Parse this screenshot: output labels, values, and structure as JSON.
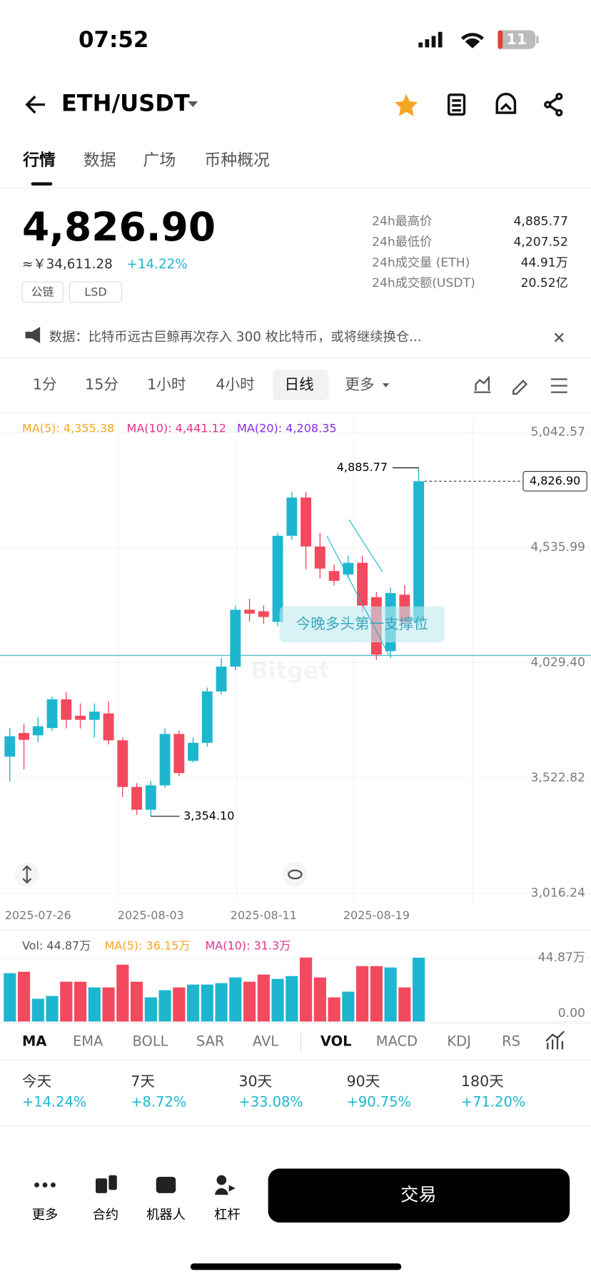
{
  "status_bar": {
    "time": "07:52",
    "battery": "11"
  },
  "header": {
    "pair": "ETH/USDT"
  },
  "tabs": [
    "行情",
    "数据",
    "广场",
    "币种概况"
  ],
  "price": {
    "last": "4,826.90",
    "cny": "≈￥34,611.28",
    "change": "+14.22%",
    "tags": [
      "公链",
      "LSD"
    ]
  },
  "stats": [
    [
      "24h最高价",
      "4,885.77"
    ],
    [
      "24h最低价",
      "4,207.52"
    ],
    [
      "24h成交量 (ETH)",
      "44.91万"
    ],
    [
      "24h成交额(USDT)",
      "20.52亿"
    ]
  ],
  "news": "数据：比特币远古巨鲸再次存入 300 枚比特币，或将继续换仓...",
  "intervals": [
    "1分",
    "15分",
    "1小时",
    "4小时",
    "日线",
    "更多"
  ],
  "kline": {
    "ma_legend": [
      {
        "text": "MA(5): 4,355.38",
        "color": "#f5a623"
      },
      {
        "text": "MA(10): 4,441.12",
        "color": "#e0338c"
      },
      {
        "text": "MA(20): 4,208.35",
        "color": "#8a2be2"
      }
    ],
    "up_color": "#1eb6cf",
    "down_color": "#f2495e",
    "categories": [
      null,
      null,
      "2025-07-26",
      null,
      null,
      null,
      null,
      null,
      null,
      null,
      "2025-08-03",
      null,
      null,
      null,
      null,
      null,
      null,
      null,
      "2025-08-11",
      null,
      null,
      null,
      null,
      null,
      null,
      null,
      "2025-08-19",
      null,
      null,
      null
    ],
    "open": [
      3616,
      3720,
      3710,
      3742,
      3868,
      3796,
      3778,
      3806,
      3688,
      3483,
      3383,
      3490,
      3716,
      3598,
      3677,
      3903,
      4012,
      4262,
      4255,
      4209,
      4587,
      4755,
      4540,
      4432,
      4417,
      4468,
      4317,
      4080,
      4328,
      4209
    ],
    "high": [
      3742,
      3760,
      3790,
      3880,
      3900,
      3850,
      3850,
      3860,
      3700,
      3500,
      3510,
      3740,
      3730,
      3700,
      3920,
      4050,
      4280,
      4310,
      4280,
      4600,
      4780,
      4780,
      4600,
      4460,
      4500,
      4500,
      4340,
      4360,
      4370,
      4885.77
    ],
    "low": [
      3508,
      3560,
      3680,
      3730,
      3740,
      3740,
      3700,
      3670,
      3440,
      3360,
      3354.1,
      3480,
      3530,
      3590,
      3660,
      3890,
      3995,
      4210,
      4200,
      4190,
      4570,
      4440,
      4400,
      4370,
      4400,
      4250,
      4040,
      4050,
      4180,
      4190
    ],
    "close": [
      3706,
      3690,
      3750,
      3868,
      3778,
      3778,
      3814,
      3688,
      3483,
      3383,
      3490,
      3716,
      3544,
      3677,
      3903,
      4012,
      4262,
      4245,
      4230,
      4587,
      4755,
      4540,
      4443,
      4389,
      4468,
      4280,
      4065,
      4335,
      4209,
      4826.9
    ],
    "ylim": [
      2980,
      5110
    ],
    "yticks": [
      {
        "value": 5042.57,
        "label": "5,042.57"
      },
      {
        "value": 4535.99,
        "label": "4,535.99"
      },
      {
        "value": 4029.4,
        "label": "4,029.40"
      },
      {
        "value": 3522.82,
        "label": "3,522.82"
      },
      {
        "value": 3016.24,
        "label": "3,016.24"
      }
    ],
    "high_marker": {
      "value": 4885.77,
      "label": "4,885.77"
    },
    "low_marker": {
      "value": 3354.1,
      "label": "3,354.10"
    },
    "last_marker": {
      "value": 4826.9,
      "label": "4,826.90"
    },
    "annotation": "今晚多头第一支撑位",
    "watermark": "Bitget"
  },
  "volume": {
    "legend": [
      {
        "text": "Vol: 44.87万",
        "color": "#555"
      },
      {
        "text": "MA(5): 36.15万",
        "color": "#f5a623"
      },
      {
        "text": "MA(10): 31.3万",
        "color": "#e0338c"
      }
    ],
    "values": [
      34,
      35,
      16,
      18,
      28,
      28,
      24,
      24,
      40,
      28,
      17,
      22,
      24,
      26,
      26,
      27,
      31,
      28,
      33,
      30,
      32,
      45,
      31,
      17,
      21,
      39,
      39,
      38,
      24,
      44.87
    ],
    "ylim": [
      0,
      50
    ],
    "yticks": [
      {
        "value": 44.87,
        "label": "44.87万"
      },
      {
        "value": 0,
        "label": "0.00"
      }
    ]
  },
  "indicators": [
    "MA",
    "EMA",
    "BOLL",
    "SAR",
    "AVL",
    "VOL",
    "MACD",
    "KDJ",
    "RS"
  ],
  "performance": [
    {
      "label": "今天",
      "value": "+14.24%"
    },
    {
      "label": "7天",
      "value": "+8.72%"
    },
    {
      "label": "30天",
      "value": "+33.08%"
    },
    {
      "label": "90天",
      "value": "+90.75%"
    },
    {
      "label": "180天",
      "value": "+71.20%"
    }
  ],
  "bottom_nav": [
    "更多",
    "合约",
    "机器人",
    "杠杆"
  ],
  "trade_button": "交易"
}
